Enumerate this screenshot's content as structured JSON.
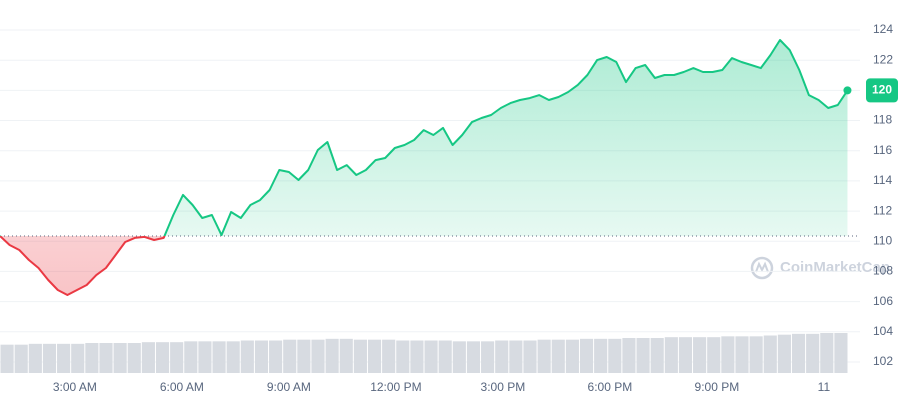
{
  "chart_data": {
    "type": "line",
    "watermark": "CoinMarketCap",
    "x": [
      0.9,
      1.17,
      1.44,
      1.71,
      1.98,
      2.25,
      2.52,
      2.79,
      3.06,
      3.33,
      3.6,
      3.87,
      4.14,
      4.41,
      4.68,
      4.95,
      5.22,
      5.49,
      5.76,
      6.03,
      6.3,
      6.57,
      6.84,
      7.11,
      7.38,
      7.65,
      7.92,
      8.19,
      8.46,
      8.73,
      9.0,
      9.27,
      9.54,
      9.81,
      10.08,
      10.35,
      10.62,
      10.89,
      11.16,
      11.43,
      11.7,
      11.97,
      12.24,
      12.51,
      12.78,
      13.05,
      13.32,
      13.59,
      13.86,
      14.13,
      14.4,
      14.67,
      14.94,
      15.21,
      15.48,
      15.75,
      16.02,
      16.29,
      16.56,
      16.83,
      17.1,
      17.37,
      17.64,
      17.91,
      18.18,
      18.45,
      18.72,
      18.99,
      19.26,
      19.53,
      19.8,
      20.07,
      20.34,
      20.61,
      20.88,
      21.15,
      21.42,
      21.69,
      21.96,
      22.23,
      22.5,
      22.77,
      23.04,
      23.31,
      23.58,
      23.85,
      24.12,
      24.39,
      24.66
    ],
    "series": [
      {
        "color": "#16c784",
        "down_color": "#ea3943",
        "values": [
          110.35,
          109.75,
          109.42,
          108.76,
          108.23,
          107.43,
          106.77,
          106.44,
          106.77,
          107.1,
          107.76,
          108.23,
          109.09,
          109.95,
          110.22,
          110.29,
          110.08,
          110.22,
          111.74,
          113.07,
          112.4,
          111.54,
          111.74,
          110.41,
          111.94,
          111.54,
          112.4,
          112.73,
          113.4,
          114.72,
          114.59,
          114.06,
          114.72,
          116.05,
          116.58,
          114.72,
          115.05,
          114.39,
          114.72,
          115.38,
          115.52,
          116.18,
          116.38,
          116.71,
          117.37,
          117.04,
          117.51,
          116.38,
          117.04,
          117.9,
          118.17,
          118.37,
          118.83,
          119.16,
          119.36,
          119.49,
          119.69,
          119.36,
          119.56,
          119.89,
          120.36,
          121.02,
          122.01,
          122.21,
          121.88,
          120.55,
          121.48,
          121.68,
          120.82,
          121.02,
          121.02,
          121.22,
          121.48,
          121.22,
          121.22,
          121.35,
          122.14,
          121.88,
          121.68,
          121.48,
          122.34,
          123.34,
          122.67,
          121.35,
          119.69,
          119.36,
          118.83,
          119.03,
          120
        ]
      }
    ],
    "volume": {
      "color": "#d7dbe1",
      "values": [
        34,
        34,
        35,
        35,
        35,
        35,
        36,
        36,
        36,
        36,
        37,
        37,
        37,
        38,
        38,
        38,
        38,
        39,
        39,
        39,
        40,
        40,
        40,
        41,
        41,
        40,
        40,
        40,
        39,
        39,
        39,
        39,
        38,
        38,
        38,
        39,
        39,
        39,
        40,
        40,
        40,
        41,
        41,
        41,
        42,
        42,
        42,
        43,
        43,
        43,
        43,
        44,
        44,
        44,
        45,
        46,
        47,
        47,
        48,
        48
      ]
    },
    "xlim": [
      0.9,
      25.18
    ],
    "xticks": [
      {
        "value": 3,
        "label": "3:00 AM"
      },
      {
        "value": 6,
        "label": "6:00 AM"
      },
      {
        "value": 9,
        "label": "9:00 AM"
      },
      {
        "value": 12,
        "label": "12:00 PM"
      },
      {
        "value": 15,
        "label": "3:00 PM"
      },
      {
        "value": 18,
        "label": "6:00 PM"
      },
      {
        "value": 21,
        "label": "9:00 PM"
      },
      {
        "value": 24,
        "label": "11"
      }
    ],
    "ylim": [
      101.5,
      125.5
    ],
    "yticks": [
      102,
      104,
      106,
      108,
      110,
      112,
      114,
      116,
      118,
      120,
      122,
      124
    ],
    "grid": true
  }
}
